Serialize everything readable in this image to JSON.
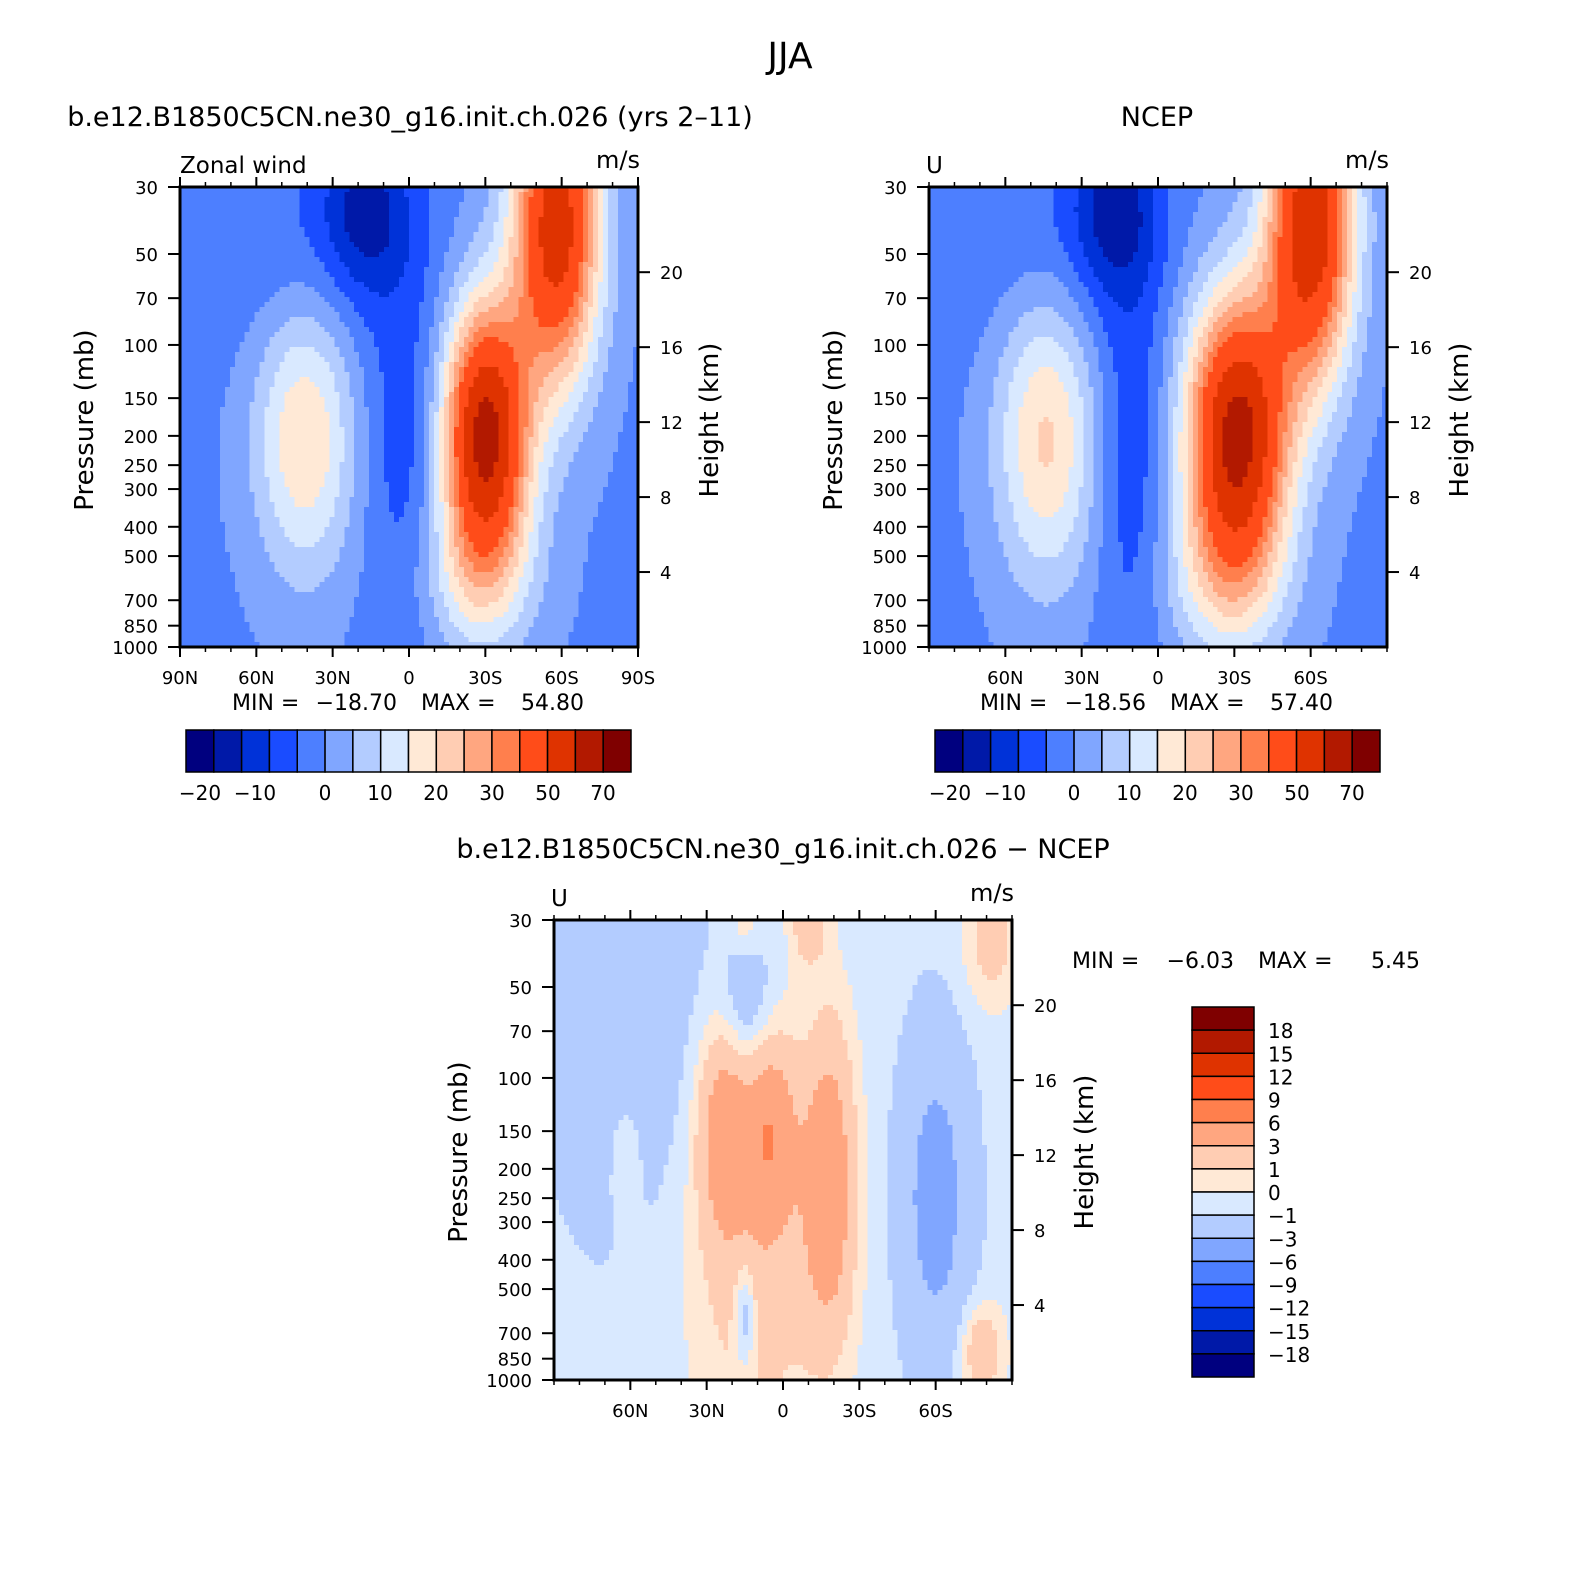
{
  "figure": {
    "title": "JJA"
  },
  "colors": {
    "absolute_scale": [
      "#00007f",
      "#0019a8",
      "#0032d8",
      "#1a4cff",
      "#4d7fff",
      "#80a6ff",
      "#b3ccff",
      "#d9e9ff",
      "#ffe9d6",
      "#ffcdb3",
      "#ffa680",
      "#ff7f4d",
      "#ff4c19",
      "#df3300",
      "#b21900",
      "#7f0000"
    ],
    "difference_scale": [
      "#00007f",
      "#0019a8",
      "#0032d8",
      "#1a4cff",
      "#4d7fff",
      "#80a6ff",
      "#b3ccff",
      "#d9e9ff",
      "#ffe9d6",
      "#ffcdb3",
      "#ffa680",
      "#ff7f4d",
      "#ff4c19",
      "#df3300",
      "#b21900",
      "#7f0000"
    ]
  },
  "chart_data": [
    {
      "type": "heatmap",
      "id": "model",
      "title": "b.e12.B1850C5CN.ne30_g16.init.ch.026 (yrs 2–11)",
      "left_label": "Zonal wind",
      "units": "m/s",
      "ylabel": "Pressure (mb)",
      "y2label": "Height (km)",
      "x_ticks": [
        "90N",
        "60N",
        "30N",
        "0",
        "30S",
        "60S",
        "90S"
      ],
      "x_tick_values": [
        90,
        60,
        30,
        0,
        -30,
        -60,
        -90
      ],
      "y_ticks": [
        30,
        50,
        70,
        100,
        150,
        200,
        250,
        300,
        400,
        500,
        700,
        850,
        1000
      ],
      "y2_ticks": [
        4,
        8,
        12,
        16,
        20
      ],
      "xlim": [
        90,
        -90
      ],
      "ylim": [
        1000,
        30
      ],
      "y_scale": "log",
      "min_label": "MIN =",
      "min_value": "−18.70",
      "max_label": "MAX =",
      "max_value": "54.80",
      "colorbar_labels": [
        "−20",
        "−10",
        "0",
        "10",
        "20",
        "30",
        "50",
        "70"
      ],
      "field": {
        "background": -6,
        "features": [
          {
            "lat": 17,
            "p": 35,
            "amp": -14,
            "slat": 12,
            "sp": 0.45
          },
          {
            "lat": 40,
            "p": 50,
            "amp": -5,
            "slat": 30,
            "sp": 0.6
          },
          {
            "lat": 41,
            "p": 200,
            "amp": 21,
            "slat": 14,
            "sp": 0.75
          },
          {
            "lat": -30,
            "p": 200,
            "amp": 60,
            "slat": 12,
            "sp": 0.7
          },
          {
            "lat": -58,
            "p": 40,
            "amp": 52,
            "slat": 12,
            "sp": 0.85
          },
          {
            "lat": -25,
            "p": 600,
            "amp": 12,
            "slat": 18,
            "sp": 0.45
          },
          {
            "lat": 0,
            "p": 250,
            "amp": -8,
            "slat": 12,
            "sp": 1.2
          }
        ]
      }
    },
    {
      "type": "heatmap",
      "id": "ncep",
      "title": "NCEP",
      "left_label": "U",
      "units": "m/s",
      "ylabel": "Pressure (mb)",
      "y2label": "Height (km)",
      "x_ticks": [
        "60N",
        "30N",
        "0",
        "30S",
        "60S"
      ],
      "x_tick_values": [
        60,
        30,
        0,
        -30,
        -60
      ],
      "y_ticks": [
        30,
        50,
        70,
        100,
        150,
        200,
        250,
        300,
        400,
        500,
        700,
        850,
        1000
      ],
      "y2_ticks": [
        4,
        8,
        12,
        16,
        20
      ],
      "xlim": [
        90,
        -90
      ],
      "ylim": [
        1000,
        30
      ],
      "y_scale": "log",
      "min_label": "MIN =",
      "min_value": "−18.56",
      "max_label": "MAX =",
      "max_value": "57.40",
      "colorbar_labels": [
        "−20",
        "−10",
        "0",
        "10",
        "20",
        "30",
        "50",
        "70"
      ],
      "field": {
        "background": -6,
        "features": [
          {
            "lat": 17,
            "p": 35,
            "amp": -14,
            "slat": 12,
            "sp": 0.45
          },
          {
            "lat": 40,
            "p": 50,
            "amp": -5,
            "slat": 30,
            "sp": 0.6
          },
          {
            "lat": 44,
            "p": 200,
            "amp": 22,
            "slat": 14,
            "sp": 0.8
          },
          {
            "lat": -31,
            "p": 200,
            "amp": 60,
            "slat": 14,
            "sp": 0.75
          },
          {
            "lat": -60,
            "p": 40,
            "amp": 54,
            "slat": 12,
            "sp": 0.85
          },
          {
            "lat": -26,
            "p": 600,
            "amp": 12,
            "slat": 18,
            "sp": 0.45
          },
          {
            "lat": 10,
            "p": 250,
            "amp": -8,
            "slat": 10,
            "sp": 1.2
          }
        ]
      }
    },
    {
      "type": "heatmap",
      "id": "difference",
      "title": "b.e12.B1850C5CN.ne30_g16.init.ch.026 − NCEP",
      "left_label": "U",
      "units": "m/s",
      "ylabel": "Pressure (mb)",
      "y2label": "Height (km)",
      "x_ticks": [
        "60N",
        "30N",
        "0",
        "30S",
        "60S"
      ],
      "x_tick_values": [
        60,
        30,
        0,
        -30,
        -60
      ],
      "y_ticks": [
        30,
        50,
        70,
        100,
        150,
        200,
        250,
        300,
        400,
        500,
        700,
        850,
        1000
      ],
      "y2_ticks": [
        4,
        8,
        12,
        16,
        20
      ],
      "xlim": [
        90,
        -90
      ],
      "ylim": [
        1000,
        30
      ],
      "y_scale": "log",
      "min_label": "MIN =",
      "min_value": "−6.03",
      "max_label": "MAX =",
      "max_value": "5.45",
      "colorbar_labels": [
        "18",
        "15",
        "12",
        "9",
        "6",
        "3",
        "1",
        "0",
        "−1",
        "−3",
        "−6",
        "−9",
        "−12",
        "−15",
        "−18"
      ],
      "field": {
        "background": -0.5,
        "features": [
          {
            "lat": 23,
            "p": 150,
            "amp": 5,
            "slat": 7,
            "sp": 0.55
          },
          {
            "lat": 5,
            "p": 150,
            "amp": 5,
            "slat": 7,
            "sp": 0.5
          },
          {
            "lat": -18,
            "p": 220,
            "amp": 5.5,
            "slat": 7,
            "sp": 0.8
          },
          {
            "lat": 10,
            "p": 400,
            "amp": 2.5,
            "slat": 18,
            "sp": 1.0
          },
          {
            "lat": -60,
            "p": 250,
            "amp": -3.5,
            "slat": 10,
            "sp": 0.9
          },
          {
            "lat": 65,
            "p": 40,
            "amp": -2.2,
            "slat": 22,
            "sp": 1.4
          },
          {
            "lat": 14,
            "p": 60,
            "amp": -2.2,
            "slat": 7,
            "sp": 0.4
          },
          {
            "lat": -10,
            "p": 30,
            "amp": 2.5,
            "slat": 5,
            "sp": 0.25
          },
          {
            "lat": 15,
            "p": 30,
            "amp": 1.5,
            "slat": 4,
            "sp": 0.2
          },
          {
            "lat": 62,
            "p": 170,
            "amp": 1.2,
            "slat": 5,
            "sp": 0.4
          },
          {
            "lat": -82,
            "p": 35,
            "amp": 2.2,
            "slat": 8,
            "sp": 0.35
          },
          {
            "lat": 15,
            "p": 600,
            "amp": -3,
            "slat": 3,
            "sp": 0.3
          },
          {
            "lat": -78,
            "p": 800,
            "amp": 3,
            "slat": 6,
            "sp": 0.25
          }
        ]
      }
    }
  ],
  "difference_levels": [
    -18,
    -15,
    -12,
    -9,
    -6,
    -3,
    -1,
    0,
    1,
    3,
    6,
    9,
    12,
    15,
    18
  ],
  "absolute_levels": [
    -25,
    -20,
    -15,
    -10,
    -5,
    0,
    5,
    10,
    15,
    20,
    25,
    30,
    40,
    50,
    60,
    70
  ]
}
